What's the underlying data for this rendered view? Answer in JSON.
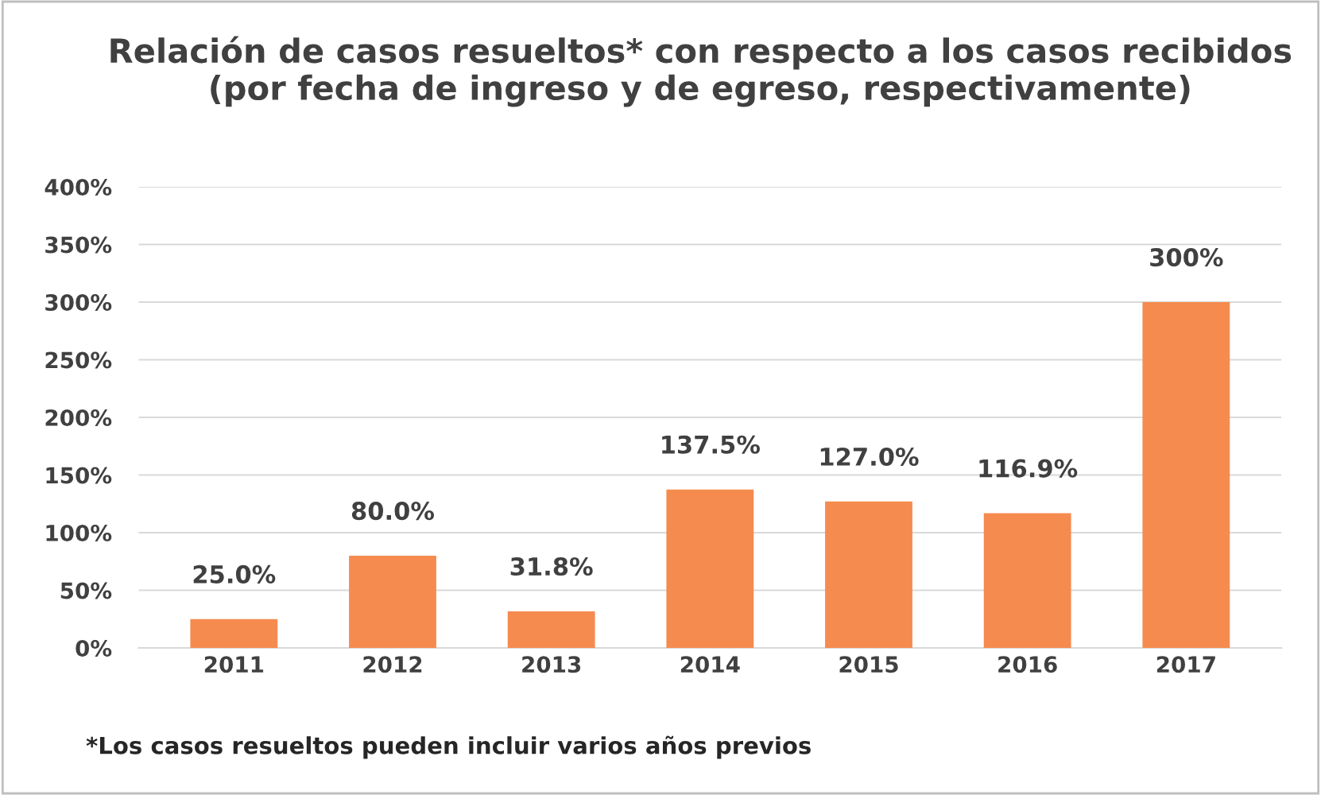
{
  "chart_data": {
    "type": "bar",
    "title": "Relación de casos resueltos* con respecto a los casos recibidos\n(por fecha de ingreso y de egreso, respectivamente)",
    "categories": [
      "2011",
      "2012",
      "2013",
      "2014",
      "2015",
      "2016",
      "2017"
    ],
    "values": [
      25.0,
      80.0,
      31.8,
      137.5,
      127.0,
      116.9,
      300
    ],
    "value_labels": [
      "25.0%",
      "80.0%",
      "31.8%",
      "137.5%",
      "127.0%",
      "116.9%",
      "300%"
    ],
    "color": "#f58b4f",
    "ylim": [
      0,
      400
    ],
    "yticks": [
      {
        "value": 0,
        "label": "0%"
      },
      {
        "value": 50,
        "label": "50%"
      },
      {
        "value": 100,
        "label": "100%"
      },
      {
        "value": 150,
        "label": "150%"
      },
      {
        "value": 200,
        "label": "200%"
      },
      {
        "value": 250,
        "label": "250%"
      },
      {
        "value": 300,
        "label": "300%"
      },
      {
        "value": 350,
        "label": "350%"
      },
      {
        "value": 400,
        "label": "400%"
      }
    ],
    "grid": "y",
    "annotations": [
      "*Los casos resueltos pueden incluir varios años previos"
    ]
  }
}
